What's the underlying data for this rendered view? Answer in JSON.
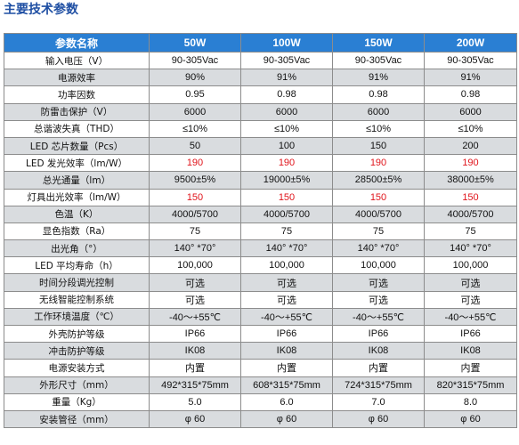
{
  "title": "主要技术参数",
  "table": {
    "headers": [
      "参数名称",
      "50W",
      "100W",
      "150W",
      "200W"
    ],
    "rows": [
      {
        "name": "输入电压（V）",
        "values": [
          "90-305Vac",
          "90-305Vac",
          "90-305Vac",
          "90-305Vac"
        ]
      },
      {
        "name": "电源效率",
        "values": [
          "90%",
          "91%",
          "91%",
          "91%"
        ]
      },
      {
        "name": "功率因数",
        "values": [
          "0.95",
          "0.98",
          "0.98",
          "0.98"
        ]
      },
      {
        "name": "防雷击保护（V）",
        "values": [
          "6000",
          "6000",
          "6000",
          "6000"
        ]
      },
      {
        "name": "总谐波失真（THD）",
        "values": [
          "≤10%",
          "≤10%",
          "≤10%",
          "≤10%"
        ]
      },
      {
        "name": "LED 芯片数量（Pcs）",
        "values": [
          "50",
          "100",
          "150",
          "200"
        ]
      },
      {
        "name": "LED 发光效率（lm/W）",
        "values": [
          "190",
          "190",
          "190",
          "190"
        ],
        "highlight": true
      },
      {
        "name": "总光通量（lm）",
        "values": [
          "9500±5%",
          "19000±5%",
          "28500±5%",
          "38000±5%"
        ]
      },
      {
        "name": "灯具出光效率（lm/W）",
        "values": [
          "150",
          "150",
          "150",
          "150"
        ],
        "highlight": true
      },
      {
        "name": "色温（K）",
        "values": [
          "4000/5700",
          "4000/5700",
          "4000/5700",
          "4000/5700"
        ]
      },
      {
        "name": "显色指数（Ra）",
        "values": [
          "75",
          "75",
          "75",
          "75"
        ]
      },
      {
        "name": "出光角（°）",
        "values": [
          "140° *70°",
          "140° *70°",
          "140° *70°",
          "140° *70°"
        ]
      },
      {
        "name": "LED 平均寿命（h）",
        "values": [
          "100,000",
          "100,000",
          "100,000",
          "100,000"
        ]
      },
      {
        "name": "时间分段调光控制",
        "values": [
          "可选",
          "可选",
          "可选",
          "可选"
        ]
      },
      {
        "name": "无线智能控制系统",
        "values": [
          "可选",
          "可选",
          "可选",
          "可选"
        ]
      },
      {
        "name": "工作环境温度（℃）",
        "values": [
          "-40～+55℃",
          "-40～+55℃",
          "-40～+55℃",
          "-40～+55℃"
        ]
      },
      {
        "name": "外壳防护等级",
        "values": [
          "IP66",
          "IP66",
          "IP66",
          "IP66"
        ]
      },
      {
        "name": "冲击防护等级",
        "values": [
          "IK08",
          "IK08",
          "IK08",
          "IK08"
        ]
      },
      {
        "name": "电源安装方式",
        "values": [
          "内置",
          "内置",
          "内置",
          "内置"
        ]
      },
      {
        "name": "外形尺寸（mm）",
        "values": [
          "492*315*75mm",
          "608*315*75mm",
          "724*315*75mm",
          "820*315*75mm"
        ]
      },
      {
        "name": "重量（Kg）",
        "values": [
          "5.0",
          "6.0",
          "7.0",
          "8.0"
        ]
      },
      {
        "name": "安装管径（mm）",
        "values": [
          "φ 60",
          "φ 60",
          "φ 60",
          "φ 60"
        ]
      }
    ]
  },
  "colors": {
    "title": "#1f4fa3",
    "header_bg": "#2a7fd3",
    "header_text": "#ffffff",
    "stripe": "#d9dcdf",
    "highlight_text": "#e0141b"
  }
}
